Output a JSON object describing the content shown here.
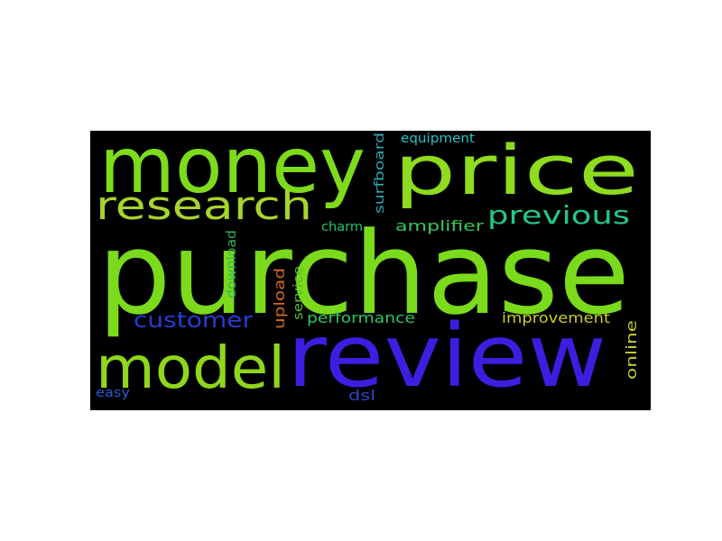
{
  "word_cloud": {
    "background": "#000000",
    "words": [
      {
        "id": "money",
        "text": "money",
        "color": "#7edb1b"
      },
      {
        "id": "price",
        "text": "price",
        "color": "#8edb1f"
      },
      {
        "id": "research",
        "text": "research",
        "color": "#a7d42d"
      },
      {
        "id": "previous",
        "text": "previous",
        "color": "#22c98a"
      },
      {
        "id": "purchase",
        "text": "purchase",
        "color": "#7ada1b"
      },
      {
        "id": "customer",
        "text": "customer",
        "color": "#2a3ad0"
      },
      {
        "id": "review",
        "text": "review",
        "color": "#3d1ee0"
      },
      {
        "id": "model",
        "text": "model",
        "color": "#8fd61c"
      },
      {
        "id": "improvement",
        "text": "improvement",
        "color": "#c9cc28"
      },
      {
        "id": "performance",
        "text": "performance",
        "color": "#2cc864"
      },
      {
        "id": "amplifier",
        "text": "amplifier",
        "color": "#3ac85a"
      },
      {
        "id": "charm",
        "text": "charm",
        "color": "#24c66c"
      },
      {
        "id": "equipment",
        "text": "equipment",
        "color": "#26c2c8"
      },
      {
        "id": "surfboard",
        "text": "surfboard",
        "color": "#2aa9b4"
      },
      {
        "id": "download",
        "text": "download",
        "color": "#30b860"
      },
      {
        "id": "upload",
        "text": "upload",
        "color": "#d46a1e"
      },
      {
        "id": "service",
        "text": "service",
        "color": "#5cbd30"
      },
      {
        "id": "online",
        "text": "online",
        "color": "#c8cc34"
      },
      {
        "id": "dsl",
        "text": "dsl",
        "color": "#2a48c8"
      },
      {
        "id": "easy",
        "text": "easy",
        "color": "#2a5ad0"
      }
    ]
  }
}
